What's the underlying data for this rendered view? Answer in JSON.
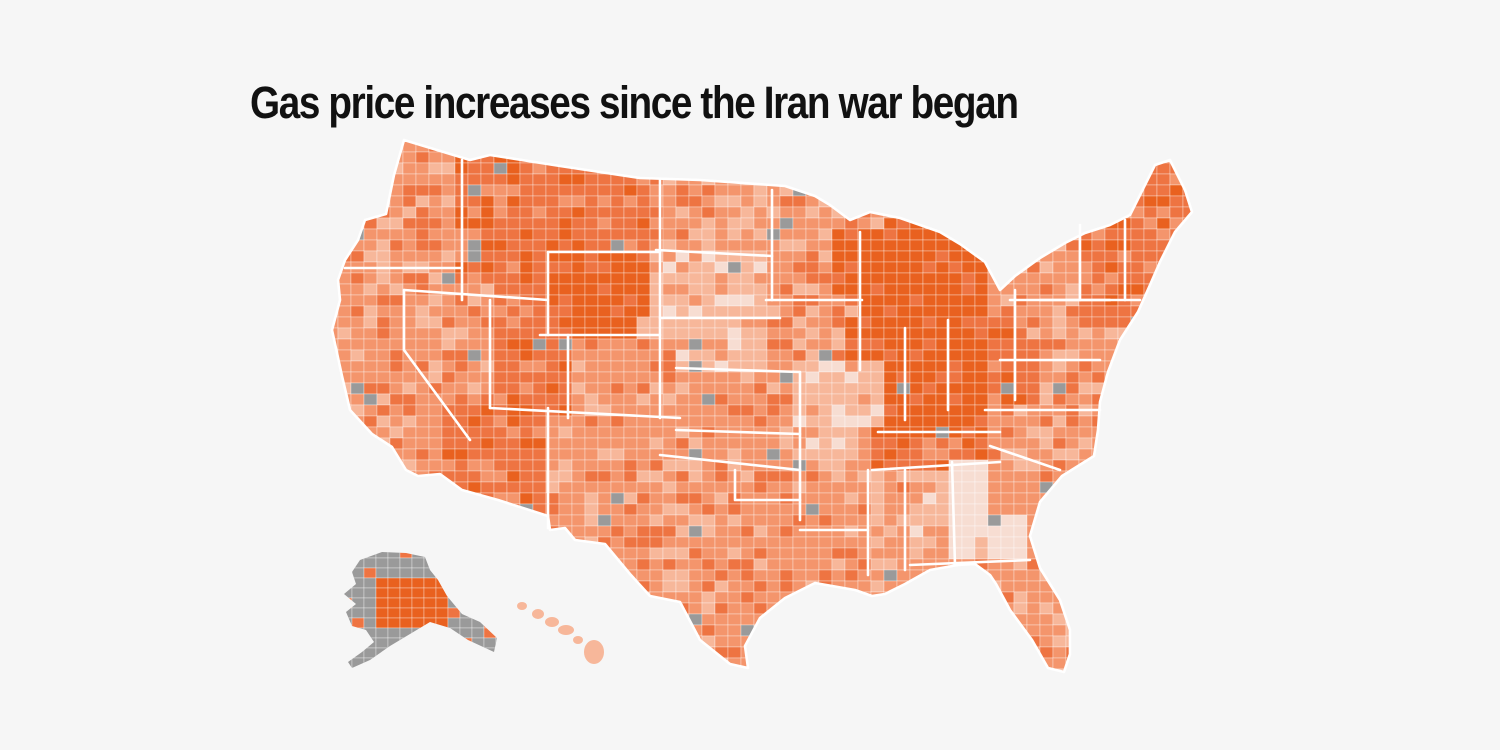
{
  "title": "Gas price increases since the Iran war began",
  "colors": {
    "background": "#f6f6f6",
    "no_data": "#9a9a9a",
    "border": "#ffffff",
    "scale": [
      "#f7ddd2",
      "#f7b79a",
      "#f4956c",
      "#ee7442",
      "#e9611f"
    ]
  },
  "map_data": {
    "type": "choropleth",
    "geography": "US counties",
    "state_levels": {
      "WA": 2,
      "OR": 2,
      "CA": 2,
      "ID": 3,
      "NV": 2,
      "MT": 3,
      "WY": 4,
      "UT": 3,
      "AZ": 3,
      "CO": 2,
      "NM": 2,
      "ND": 2,
      "SD": 1,
      "NE": 1,
      "KS": 2,
      "OK": 2,
      "TX": 2,
      "MN": 2,
      "IA": 2,
      "MO": 1,
      "AR": 2,
      "LA": 2,
      "WI": 4,
      "IL": 4,
      "MI": 4,
      "IN": 4,
      "OH": 4,
      "KY": 4,
      "TN": 3,
      "MS": 2,
      "AL": 1,
      "GA": 0,
      "FL": 2,
      "SC": 2,
      "NC": 2,
      "VA": 2,
      "WV": 3,
      "PA": 2,
      "NY": 2,
      "ME": 3,
      "NE_STATES": 3,
      "AK": 4,
      "HI": 1
    }
  }
}
